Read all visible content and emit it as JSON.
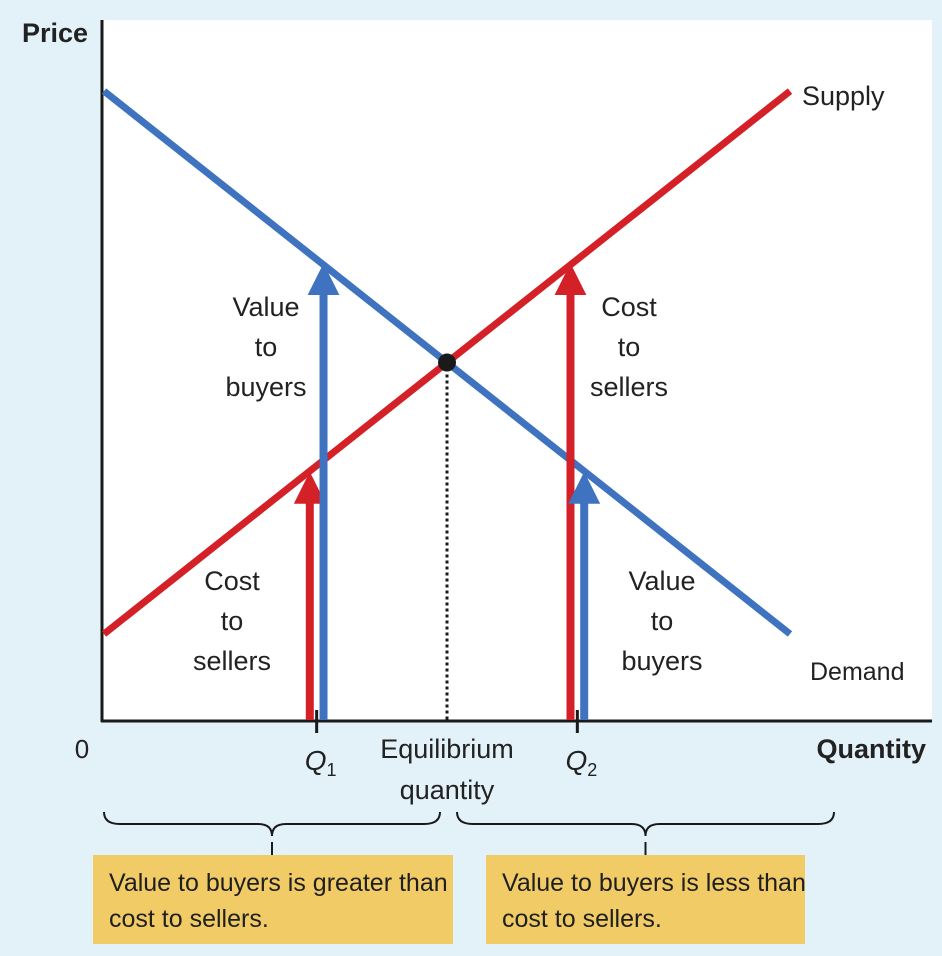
{
  "chart_data": {
    "type": "line",
    "ylabel": "Price",
    "xlabel": "Quantity",
    "origin_label": "0",
    "xlim": [
      0,
      100
    ],
    "ylim": [
      0,
      100
    ],
    "grid": false,
    "series": [
      {
        "name": "Supply",
        "color": "#d42127",
        "x": [
          0,
          100
        ],
        "y": [
          13,
          95
        ]
      },
      {
        "name": "Demand",
        "color": "#3f73c0",
        "x": [
          0,
          100
        ],
        "y": [
          95,
          13
        ]
      }
    ],
    "equilibrium": {
      "x": 50,
      "y": 54,
      "label_line1": "Equilibrium",
      "label_line2": "quantity"
    },
    "q1": {
      "letter": "Q",
      "subscript": "1",
      "x": 31,
      "red_arrow_x": 30,
      "red_arrow_top": 37.5,
      "blue_arrow_x": 32,
      "blue_arrow_top": 69,
      "blue_label": [
        "Value",
        "to",
        "buyers"
      ],
      "red_label": [
        "Cost",
        "to",
        "sellers"
      ]
    },
    "q2": {
      "letter": "Q",
      "subscript": "2",
      "x": 69,
      "red_arrow_x": 68,
      "red_arrow_top": 69,
      "blue_arrow_x": 70,
      "blue_arrow_top": 37.5,
      "red_label": [
        "Cost",
        "to",
        "sellers"
      ],
      "blue_label": [
        "Value",
        "to",
        "buyers"
      ]
    },
    "notes": {
      "left": [
        "Value to buyers is greater than",
        "cost to sellers."
      ],
      "right": [
        "Value to buyers is less than",
        "cost to sellers."
      ]
    }
  }
}
